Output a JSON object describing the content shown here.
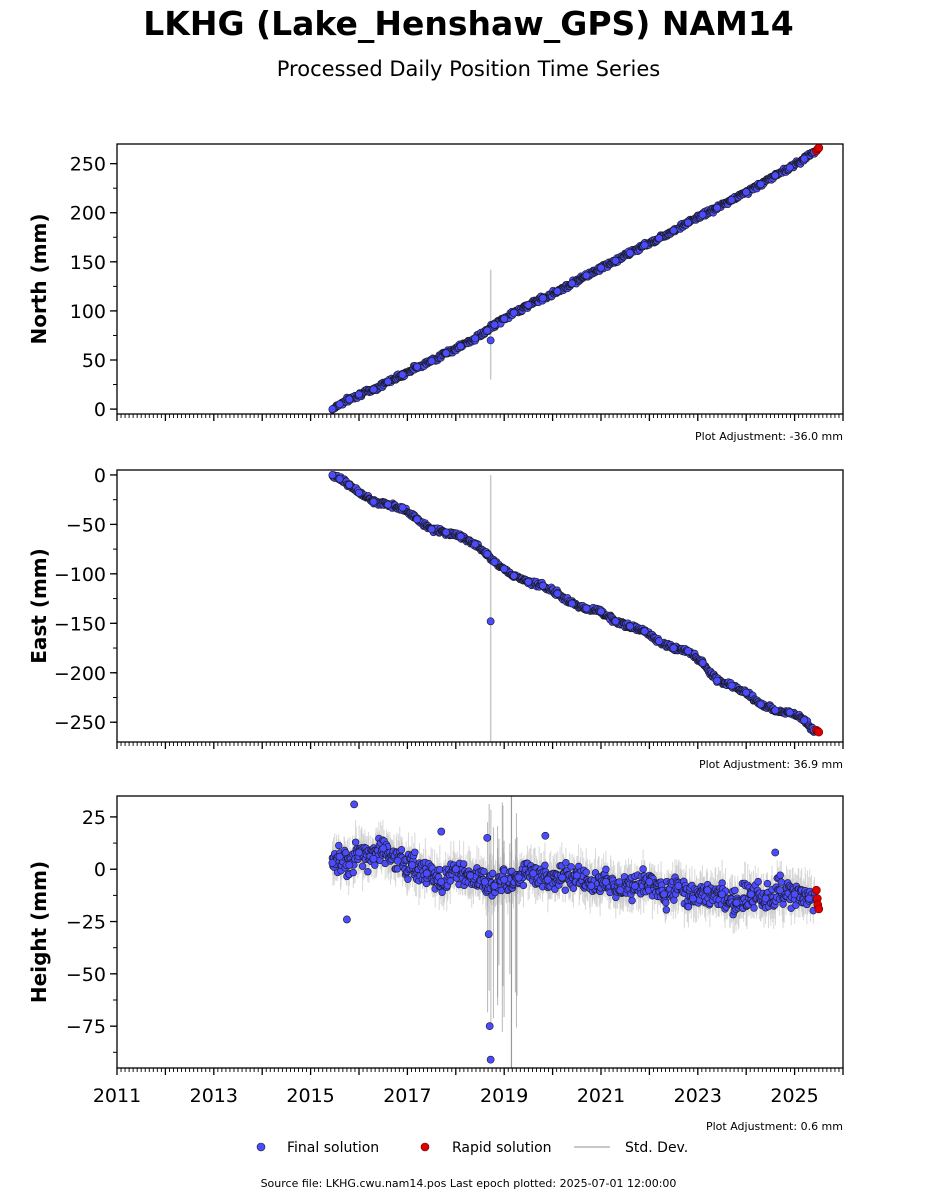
{
  "header": {
    "title": "LKHG (Lake_Henshaw_GPS) NAM14",
    "subtitle": "Processed Daily Position Time Series"
  },
  "footer": {
    "source": "Source file: LKHG.cwu.nam14.pos  Last epoch plotted: 2025-07-01 12:00:00"
  },
  "legend": {
    "final": "Final solution",
    "rapid": "Rapid solution",
    "std": "Std. Dev."
  },
  "colors": {
    "final": "#4b4bff",
    "rapid": "#e00000",
    "std": "#c8c8c8",
    "marker_edge": "#1a1a1a"
  },
  "chart_data": [
    {
      "type": "scatter",
      "ylabel": "North (mm)",
      "adjustment": "Plot Adjustment: -36.0 mm",
      "xlim": [
        2011,
        2026
      ],
      "ylim": [
        -5,
        270
      ],
      "yticks": [
        0,
        50,
        100,
        150,
        200,
        250
      ],
      "ytick_labels": [
        "0",
        "50",
        "100",
        "150",
        "200",
        "250"
      ],
      "xtick_labels": [],
      "series": [
        {
          "name": "Final solution",
          "x": [
            2015.45,
            2015.6,
            2015.8,
            2016.0,
            2016.3,
            2016.6,
            2016.9,
            2017.2,
            2017.5,
            2017.8,
            2018.1,
            2018.4,
            2018.65,
            2018.8,
            2019.0,
            2019.2,
            2019.5,
            2019.8,
            2020.1,
            2020.4,
            2020.7,
            2021.0,
            2021.3,
            2021.6,
            2021.9,
            2022.2,
            2022.5,
            2022.8,
            2023.1,
            2023.4,
            2023.7,
            2024.0,
            2024.3,
            2024.6,
            2024.9,
            2025.2,
            2025.4,
            2018.72
          ],
          "y": [
            0,
            5,
            10,
            15,
            20,
            28,
            35,
            43,
            49,
            57,
            64,
            72,
            80,
            86,
            92,
            98,
            106,
            113,
            120,
            128,
            136,
            144,
            151,
            159,
            167,
            174,
            182,
            190,
            198,
            205,
            213,
            221,
            229,
            238,
            246,
            255,
            262,
            70
          ]
        },
        {
          "name": "Rapid solution",
          "x": [
            2025.45,
            2025.48,
            2025.5
          ],
          "y": [
            263,
            265,
            266
          ]
        }
      ]
    },
    {
      "type": "scatter",
      "ylabel": "East (mm)",
      "adjustment": "Plot Adjustment: 36.9 mm",
      "xlim": [
        2011,
        2026
      ],
      "ylim": [
        -270,
        5
      ],
      "yticks": [
        0,
        -50,
        -100,
        -150,
        -200,
        -250
      ],
      "ytick_labels": [
        "0",
        "−50",
        "−100",
        "−150",
        "−200",
        "−250"
      ],
      "xtick_labels": [],
      "series": [
        {
          "name": "Final solution",
          "x": [
            2015.45,
            2015.6,
            2015.8,
            2016.0,
            2016.3,
            2016.6,
            2016.9,
            2017.2,
            2017.5,
            2017.8,
            2018.1,
            2018.4,
            2018.65,
            2018.8,
            2019.0,
            2019.2,
            2019.5,
            2019.8,
            2020.1,
            2020.4,
            2020.7,
            2021.0,
            2021.3,
            2021.6,
            2021.9,
            2022.2,
            2022.5,
            2022.8,
            2023.1,
            2023.4,
            2023.7,
            2024.0,
            2024.3,
            2024.6,
            2024.9,
            2025.2,
            2025.4,
            2018.72
          ],
          "y": [
            0,
            -4,
            -10,
            -18,
            -27,
            -30,
            -33,
            -45,
            -55,
            -58,
            -62,
            -70,
            -80,
            -88,
            -95,
            -102,
            -108,
            -112,
            -120,
            -130,
            -135,
            -138,
            -148,
            -153,
            -158,
            -168,
            -175,
            -178,
            -190,
            -208,
            -213,
            -220,
            -232,
            -238,
            -240,
            -248,
            -258,
            -148
          ]
        },
        {
          "name": "Rapid solution",
          "x": [
            2025.45,
            2025.48,
            2025.5
          ],
          "y": [
            -258,
            -259,
            -260
          ]
        }
      ]
    },
    {
      "type": "scatter",
      "ylabel": "Height (mm)",
      "adjustment": "Plot Adjustment: 0.6 mm",
      "xlim": [
        2011,
        2026
      ],
      "ylim": [
        -95,
        35
      ],
      "yticks": [
        25,
        0,
        -25,
        -50,
        -75
      ],
      "ytick_labels": [
        "25",
        "0",
        "−25",
        "−50",
        "−75"
      ],
      "xtick_labels": [
        "2011",
        "2013",
        "2015",
        "2017",
        "2019",
        "2021",
        "2023",
        "2025"
      ],
      "xticks": [
        2011,
        2013,
        2015,
        2017,
        2019,
        2021,
        2023,
        2025
      ],
      "series": [
        {
          "name": "Final solution",
          "x": [
            2015.45,
            2015.6,
            2015.8,
            2016.0,
            2016.3,
            2016.5,
            2016.8,
            2017.1,
            2017.4,
            2017.7,
            2018.0,
            2018.3,
            2018.6,
            2018.8,
            2019.0,
            2019.3,
            2019.6,
            2019.9,
            2020.2,
            2020.5,
            2020.8,
            2021.1,
            2021.4,
            2021.7,
            2022.0,
            2022.3,
            2022.6,
            2022.9,
            2023.2,
            2023.5,
            2023.8,
            2024.1,
            2024.4,
            2024.7,
            2025.0,
            2025.3,
            2015.9,
            2015.75,
            2017.7,
            2019.85,
            2024.6,
            2018.7,
            2018.72,
            2018.68,
            2018.65
          ],
          "y": [
            3,
            6,
            2,
            8,
            5,
            10,
            4,
            2,
            -2,
            -6,
            0,
            -3,
            -6,
            -8,
            -5,
            -4,
            -2,
            -5,
            -4,
            -3,
            -8,
            -6,
            -10,
            -8,
            -6,
            -12,
            -8,
            -14,
            -10,
            -12,
            -16,
            -12,
            -14,
            -10,
            -12,
            -14,
            31,
            -24,
            18,
            16,
            8,
            -75,
            -91,
            -31,
            15
          ]
        },
        {
          "name": "Rapid solution",
          "x": [
            2025.45,
            2025.47,
            2025.48,
            2025.5
          ],
          "y": [
            -10,
            -14,
            -17,
            -19
          ]
        }
      ]
    }
  ]
}
